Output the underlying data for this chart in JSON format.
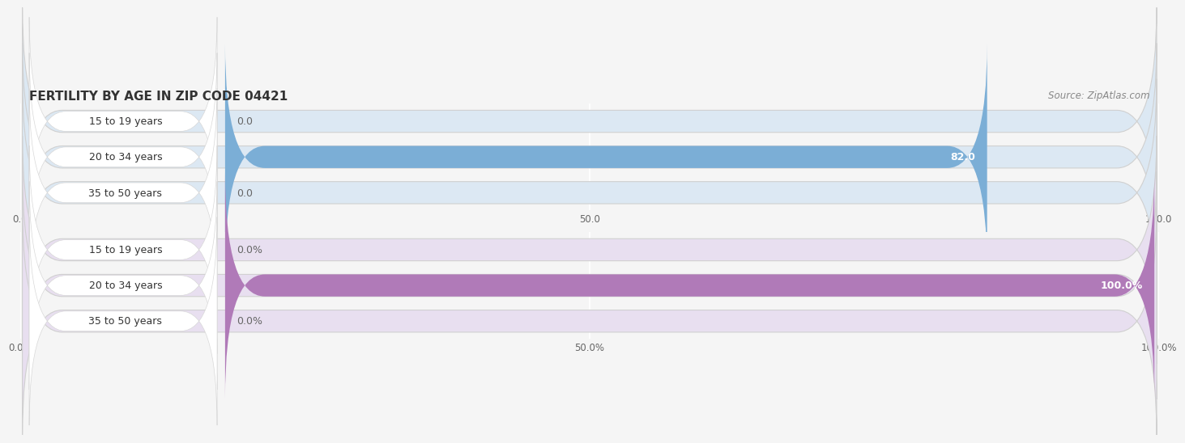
{
  "title": "FERTILITY BY AGE IN ZIP CODE 04421",
  "source": "Source: ZipAtlas.com",
  "top_chart": {
    "categories": [
      "15 to 19 years",
      "20 to 34 years",
      "35 to 50 years"
    ],
    "values": [
      0.0,
      82.0,
      0.0
    ],
    "xlim": [
      0,
      100
    ],
    "xticks": [
      0.0,
      50.0,
      100.0
    ],
    "xtick_labels": [
      "0.0",
      "50.0",
      "100.0"
    ],
    "bar_color": "#7baed6",
    "bar_bg_color": "#dce8f3",
    "label_inside_color": "#ffffff",
    "label_outside_color": "#666666",
    "value_threshold": 50,
    "is_percent": false
  },
  "bottom_chart": {
    "categories": [
      "15 to 19 years",
      "20 to 34 years",
      "35 to 50 years"
    ],
    "values": [
      0.0,
      100.0,
      0.0
    ],
    "xlim": [
      0,
      100
    ],
    "xticks": [
      0.0,
      50.0,
      100.0
    ],
    "xtick_labels": [
      "0.0%",
      "50.0%",
      "100.0%"
    ],
    "bar_color": "#b07ab8",
    "bar_bg_color": "#e8dff0",
    "label_inside_color": "#ffffff",
    "label_outside_color": "#666666",
    "value_threshold": 50,
    "is_percent": true
  },
  "fig_bg_color": "#f5f5f5",
  "grid_color": "#ffffff",
  "title_color": "#333333",
  "title_fontsize": 11,
  "source_fontsize": 8.5,
  "cat_label_fontsize": 9,
  "val_label_fontsize": 9,
  "tick_fontsize": 8.5,
  "bar_height": 0.62,
  "label_pill_color": "#ffffff",
  "label_pill_edge": "#cccccc"
}
